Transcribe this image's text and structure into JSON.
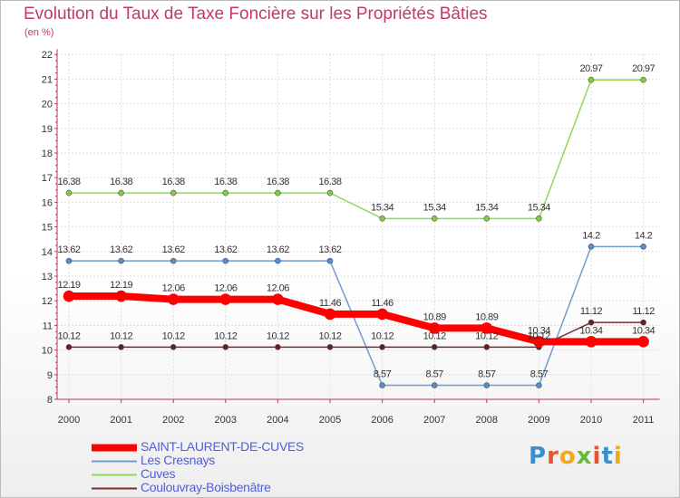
{
  "chart_data": {
    "type": "line",
    "title": "Evolution du Taux de Taxe Foncière sur les Propriétés Bâties",
    "ylabel": "(en %)",
    "xlabel": "",
    "ylim": [
      8,
      22
    ],
    "yticks": [
      "8",
      "9",
      "10",
      "11",
      "12",
      "13",
      "14",
      "15",
      "16",
      "17",
      "18",
      "19",
      "20",
      "21",
      "22"
    ],
    "categories": [
      "2000",
      "2001",
      "2002",
      "2003",
      "2004",
      "2005",
      "2006",
      "2007",
      "2008",
      "2009",
      "2010",
      "2011"
    ],
    "series": [
      {
        "name": "SAINT-LAURENT-DE-CUVES",
        "color": "#ff0000",
        "values": [
          12.19,
          12.19,
          12.06,
          12.06,
          12.06,
          11.46,
          11.46,
          10.89,
          10.89,
          10.34,
          10.34,
          10.34
        ],
        "labels": [
          "12.19",
          "12.19",
          "12.06",
          "12.06",
          "12.06",
          "11.46",
          "11.46",
          "10.89",
          "10.89",
          "10.34",
          "10.34",
          "10.34"
        ]
      },
      {
        "name": "Les Cresnays",
        "color": "#6f9ccf",
        "values": [
          13.62,
          13.62,
          13.62,
          13.62,
          13.62,
          13.62,
          8.57,
          8.57,
          8.57,
          8.57,
          14.2,
          14.2
        ],
        "labels": [
          "13.62",
          "13.62",
          "13.62",
          "13.62",
          "13.62",
          "13.62",
          "8.57",
          "8.57",
          "8.57",
          "8.57",
          "14.2",
          "14.2"
        ]
      },
      {
        "name": "Cuves",
        "color": "#8fd95a",
        "values": [
          16.38,
          16.38,
          16.38,
          16.38,
          16.38,
          16.38,
          15.34,
          15.34,
          15.34,
          15.34,
          20.97,
          20.97
        ],
        "labels": [
          "16.38",
          "16.38",
          "16.38",
          "16.38",
          "16.38",
          "16.38",
          "15.34",
          "15.34",
          "15.34",
          "15.34",
          "20.97",
          "20.97"
        ]
      },
      {
        "name": "Coulouvray-Boisbenâtre",
        "color": "#7a2c2c",
        "values": [
          10.12,
          10.12,
          10.12,
          10.12,
          10.12,
          10.12,
          10.12,
          10.12,
          10.12,
          10.12,
          11.12,
          11.12
        ],
        "labels": [
          "10.12",
          "10.12",
          "10.12",
          "10.12",
          "10.12",
          "10.12",
          "10.12",
          "10.12",
          "10.12",
          "10.12",
          "11.12",
          "11.12"
        ]
      }
    ],
    "legend_position": "bottom-left"
  },
  "logo": {
    "letters": [
      "P",
      "r",
      "o",
      "x",
      "i",
      "t",
      "i"
    ],
    "colors": [
      "#3b8fd1",
      "#e8542f",
      "#f2a81d",
      "#6cb83a",
      "#e8542f",
      "#3b8fd1",
      "#f2a81d"
    ]
  }
}
